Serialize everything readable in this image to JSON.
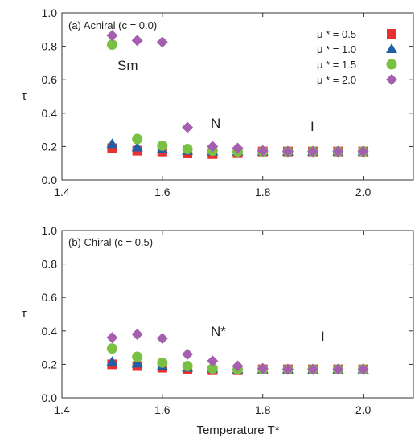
{
  "chart_data": [
    {
      "type": "scatter",
      "panel_title": "(a) Achiral (c = 0.0)",
      "xlabel": "",
      "ylabel": "τ",
      "xlim": [
        1.4,
        2.1
      ],
      "ylim": [
        0.0,
        1.0
      ],
      "x_ticks": [
        "1.4",
        "1.6",
        "1.8",
        "2.0"
      ],
      "y_ticks": [
        "0.0",
        "0.2",
        "0.4",
        "0.6",
        "0.8",
        "1.0"
      ],
      "legend_position": "top-right",
      "phase_labels": [
        "Sm",
        "N",
        "I"
      ],
      "series": [
        {
          "name": "μ * = 0.5",
          "marker": "square",
          "color": "#e8312f",
          "x": [
            1.5,
            1.55,
            1.6,
            1.65,
            1.7,
            1.75,
            1.8,
            1.85,
            1.9,
            1.95,
            2.0
          ],
          "y": [
            0.19,
            0.175,
            0.17,
            0.16,
            0.155,
            0.165,
            0.17,
            0.17,
            0.17,
            0.17,
            0.17
          ]
        },
        {
          "name": "μ * = 1.0",
          "marker": "triangle",
          "color": "#1f5fa8",
          "x": [
            1.5,
            1.55,
            1.6,
            1.65,
            1.7,
            1.75,
            1.8,
            1.85,
            1.9,
            1.95,
            2.0
          ],
          "y": [
            0.215,
            0.195,
            0.185,
            0.175,
            0.17,
            0.17,
            0.17,
            0.17,
            0.17,
            0.17,
            0.17
          ]
        },
        {
          "name": "μ * = 1.5",
          "marker": "circle",
          "color": "#7ac143",
          "x": [
            1.5,
            1.55,
            1.6,
            1.65,
            1.7,
            1.75,
            1.8,
            1.85,
            1.9,
            1.95,
            2.0
          ],
          "y": [
            0.81,
            0.245,
            0.205,
            0.185,
            0.175,
            0.17,
            0.17,
            0.17,
            0.17,
            0.17,
            0.17
          ]
        },
        {
          "name": "μ * = 2.0",
          "marker": "diamond",
          "color": "#a65fb0",
          "x": [
            1.5,
            1.55,
            1.6,
            1.65,
            1.7,
            1.75,
            1.8,
            1.85,
            1.9,
            1.95,
            2.0
          ],
          "y": [
            0.865,
            0.835,
            0.825,
            0.315,
            0.2,
            0.19,
            0.175,
            0.17,
            0.17,
            0.17,
            0.17
          ]
        }
      ]
    },
    {
      "type": "scatter",
      "panel_title": "(b) Chiral (c = 0.5)",
      "xlabel": "Temperature T*",
      "ylabel": "τ",
      "xlim": [
        1.4,
        2.1
      ],
      "ylim": [
        0.0,
        1.0
      ],
      "x_ticks": [
        "1.4",
        "1.6",
        "1.8",
        "2.0"
      ],
      "y_ticks": [
        "0.0",
        "0.2",
        "0.4",
        "0.6",
        "0.8",
        "1.0"
      ],
      "phase_labels": [
        "N*",
        "I"
      ],
      "series": [
        {
          "name": "μ * = 0.5",
          "marker": "square",
          "color": "#e8312f",
          "x": [
            1.5,
            1.55,
            1.6,
            1.65,
            1.7,
            1.75,
            1.8,
            1.85,
            1.9,
            1.95,
            2.0
          ],
          "y": [
            0.2,
            0.19,
            0.18,
            0.17,
            0.165,
            0.165,
            0.17,
            0.17,
            0.17,
            0.17,
            0.17
          ]
        },
        {
          "name": "μ * = 1.0",
          "marker": "triangle",
          "color": "#1f5fa8",
          "x": [
            1.5,
            1.55,
            1.6,
            1.65,
            1.7,
            1.75,
            1.8,
            1.85,
            1.9,
            1.95,
            2.0
          ],
          "y": [
            0.215,
            0.205,
            0.19,
            0.18,
            0.175,
            0.17,
            0.17,
            0.17,
            0.17,
            0.17,
            0.17
          ]
        },
        {
          "name": "μ * = 1.5",
          "marker": "circle",
          "color": "#7ac143",
          "x": [
            1.5,
            1.55,
            1.6,
            1.65,
            1.7,
            1.75,
            1.8,
            1.85,
            1.9,
            1.95,
            2.0
          ],
          "y": [
            0.295,
            0.245,
            0.21,
            0.19,
            0.175,
            0.17,
            0.17,
            0.17,
            0.17,
            0.17,
            0.17
          ]
        },
        {
          "name": "μ * = 2.0",
          "marker": "diamond",
          "color": "#a65fb0",
          "x": [
            1.5,
            1.55,
            1.6,
            1.65,
            1.7,
            1.75,
            1.8,
            1.85,
            1.9,
            1.95,
            2.0
          ],
          "y": [
            0.36,
            0.38,
            0.355,
            0.26,
            0.22,
            0.19,
            0.175,
            0.17,
            0.17,
            0.17,
            0.17
          ]
        }
      ]
    }
  ]
}
